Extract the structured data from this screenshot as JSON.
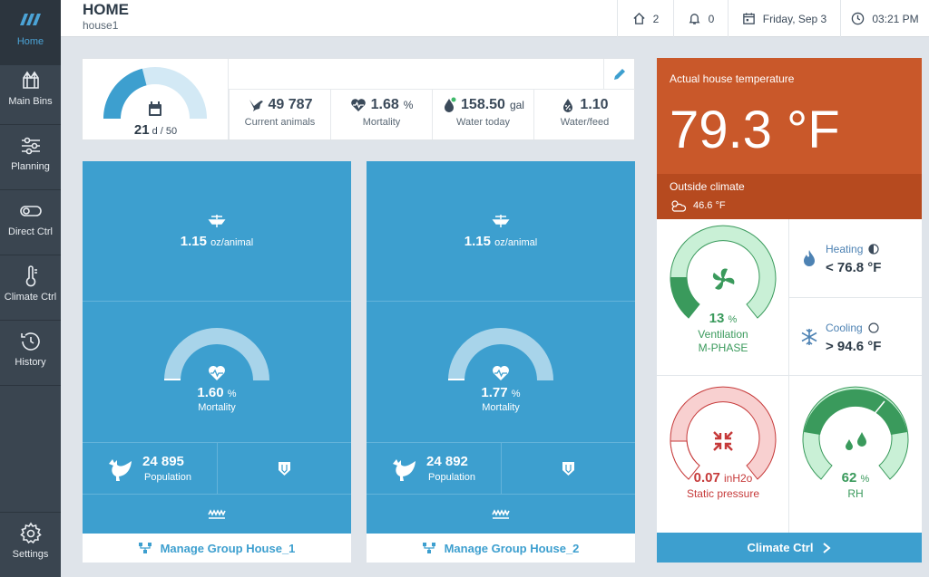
{
  "sidebar": {
    "items": [
      {
        "label": "Home",
        "icon": "logo-stripes-icon",
        "active": true
      },
      {
        "label": "Main Bins",
        "icon": "bins-icon"
      },
      {
        "label": "Planning",
        "icon": "sliders-icon"
      },
      {
        "label": "Direct Ctrl",
        "icon": "toggle-icon"
      },
      {
        "label": "Climate Ctrl",
        "icon": "thermometer-icon"
      },
      {
        "label": "History",
        "icon": "history-icon"
      },
      {
        "label": "Settings",
        "icon": "gear-icon"
      }
    ]
  },
  "header": {
    "title": "HOME",
    "subtitle": "house1",
    "houses_count": "2",
    "alarms_count": "0",
    "date": "Friday, Sep 3",
    "time": "03:21 PM"
  },
  "summary": {
    "day": "21",
    "day_suffix": "d / 50",
    "day_fraction": 0.42,
    "animals_value": "49 787",
    "animals_caption": "Current animals",
    "mortality_value": "1.68",
    "mortality_unit": "%",
    "mortality_caption": "Mortality",
    "water_value": "158.50",
    "water_unit": "gal",
    "water_caption": "Water today",
    "waterfeed_value": "1.10",
    "waterfeed_caption": "Water/feed"
  },
  "groups": [
    {
      "feed_value": "1.15",
      "feed_unit": "oz/animal",
      "mortality_value": "1.60",
      "mortality_unit": "%",
      "mortality_caption": "Mortality",
      "population_value": "24 895",
      "population_caption": "Population",
      "manage_label": "Manage Group House_1"
    },
    {
      "feed_value": "1.15",
      "feed_unit": "oz/animal",
      "mortality_value": "1.77",
      "mortality_unit": "%",
      "mortality_caption": "Mortality",
      "population_value": "24 892",
      "population_caption": "Population",
      "manage_label": "Manage Group House_2"
    }
  ],
  "climate": {
    "actual_label": "Actual house temperature",
    "actual_value": "79.3 °F",
    "outside_label": "Outside climate",
    "outside_value": "46.6 °F",
    "ventilation_value": "13",
    "ventilation_unit": "%",
    "ventilation_label": "Ventilation",
    "ventilation_mode": "M-PHASE",
    "heating_label": "Heating",
    "heating_value": "< 76.8 °F",
    "cooling_label": "Cooling",
    "cooling_value": "> 94.6 °F",
    "pressure_value": "0.07",
    "pressure_unit": "inH2o",
    "pressure_label": "Static pressure",
    "rh_value": "62",
    "rh_unit": "%",
    "rh_label": "RH",
    "button_label": "Climate Ctrl"
  },
  "colors": {
    "accent": "#3d9fcf",
    "temperature": "#c9582a",
    "green": "#3a9a5c",
    "red": "#c63a3a"
  }
}
